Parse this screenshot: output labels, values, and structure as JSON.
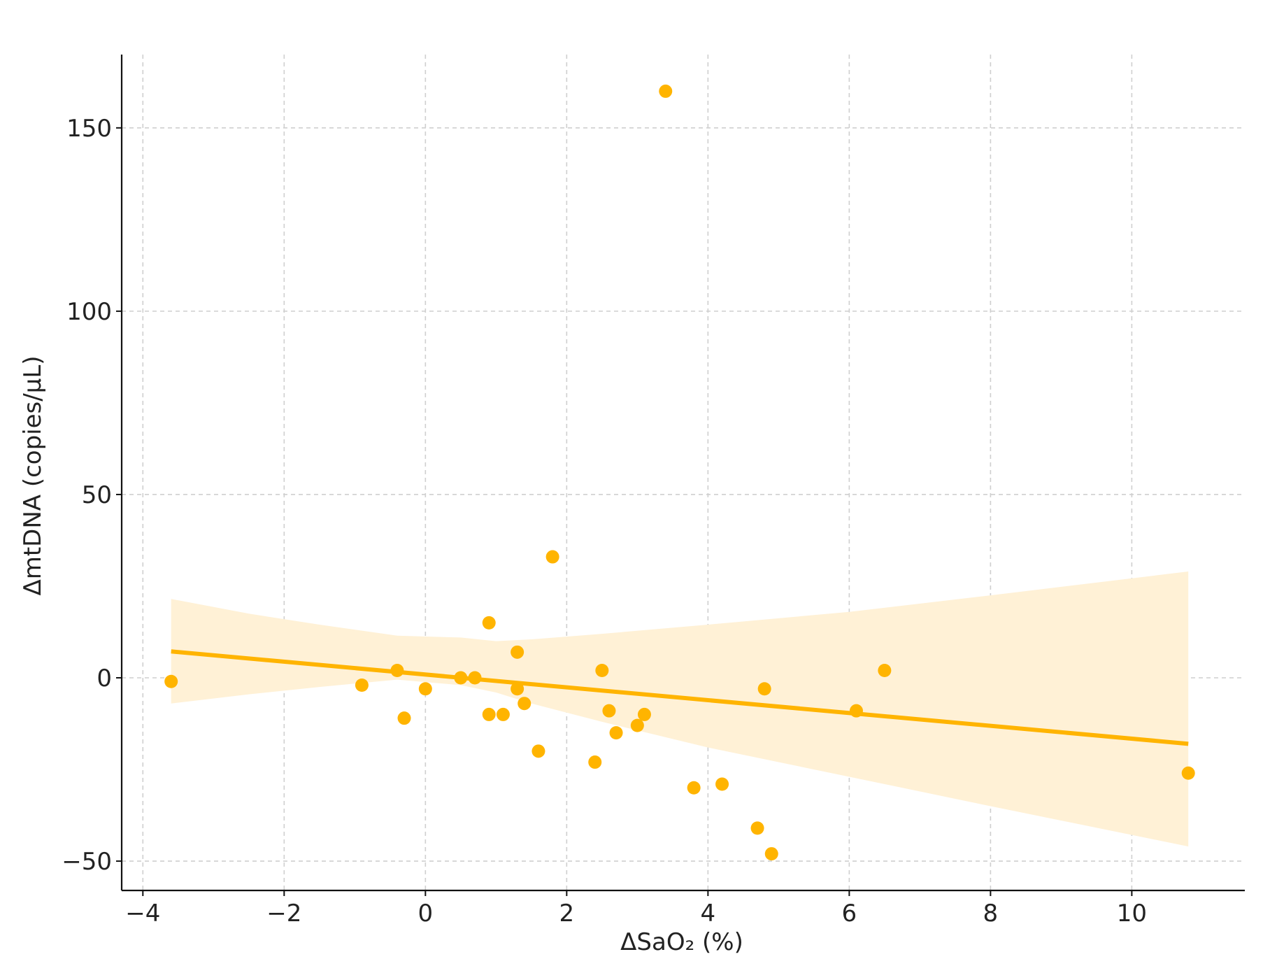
{
  "chart_data": {
    "type": "scatter",
    "title": "",
    "xlabel": "ΔSaO₂ (%)",
    "ylabel": "ΔmtDNA (copies/μL)",
    "xlim": [
      -4.3,
      11.6
    ],
    "ylim": [
      -58,
      170
    ],
    "xticks": [
      -4,
      -2,
      0,
      2,
      4,
      6,
      8,
      10
    ],
    "xtick_labels": [
      "−4",
      "−2",
      "0",
      "2",
      "4",
      "6",
      "8",
      "10"
    ],
    "yticks": [
      -50,
      0,
      50,
      100,
      150
    ],
    "ytick_labels": [
      "−50",
      "0",
      "50",
      "100",
      "150"
    ],
    "grid": true,
    "legend": "none",
    "colors": {
      "points": "#FFB400",
      "fit_line": "#FFB400",
      "confidence_band": "#FFF1D6",
      "grid": "#cfcfcf",
      "axis": "#111111"
    },
    "series": [
      {
        "points": [
          {
            "x": -3.6,
            "y": -1
          },
          {
            "x": -0.9,
            "y": -2
          },
          {
            "x": -0.4,
            "y": 2
          },
          {
            "x": -0.3,
            "y": -11
          },
          {
            "x": 0.0,
            "y": -3
          },
          {
            "x": 0.5,
            "y": 0
          },
          {
            "x": 0.7,
            "y": 0
          },
          {
            "x": 0.9,
            "y": 15
          },
          {
            "x": 0.9,
            "y": -10
          },
          {
            "x": 1.1,
            "y": -10
          },
          {
            "x": 1.3,
            "y": 7
          },
          {
            "x": 1.3,
            "y": -3
          },
          {
            "x": 1.4,
            "y": -7
          },
          {
            "x": 1.6,
            "y": -20
          },
          {
            "x": 1.8,
            "y": 33
          },
          {
            "x": 2.4,
            "y": -23
          },
          {
            "x": 2.5,
            "y": 2
          },
          {
            "x": 2.6,
            "y": -9
          },
          {
            "x": 2.7,
            "y": -15
          },
          {
            "x": 3.0,
            "y": -13
          },
          {
            "x": 3.1,
            "y": -10
          },
          {
            "x": 3.4,
            "y": 160
          },
          {
            "x": 3.8,
            "y": -30
          },
          {
            "x": 4.2,
            "y": -29
          },
          {
            "x": 4.7,
            "y": -41
          },
          {
            "x": 4.8,
            "y": -3
          },
          {
            "x": 4.9,
            "y": -48
          },
          {
            "x": 6.1,
            "y": -9
          },
          {
            "x": 6.5,
            "y": 2
          },
          {
            "x": 10.8,
            "y": -26
          }
        ]
      }
    ],
    "regression": {
      "x": [
        -3.6,
        10.8
      ],
      "y": [
        7.2,
        -18.0
      ]
    },
    "confidence_band": {
      "x": [
        -3.6,
        -2.5,
        -1.5,
        -0.4,
        0.5,
        1.0,
        1.5,
        2.5,
        4.0,
        6.0,
        8.0,
        10.8
      ],
      "upper": [
        21.5,
        17.5,
        14.5,
        11.5,
        11.0,
        10.0,
        10.5,
        12.0,
        14.5,
        18.0,
        22.5,
        29.0
      ],
      "lower": [
        -7.0,
        -4.5,
        -2.5,
        -0.5,
        -2.0,
        -4.0,
        -7.0,
        -12.0,
        -19.0,
        -27.0,
        -35.0,
        -46.0
      ]
    }
  }
}
